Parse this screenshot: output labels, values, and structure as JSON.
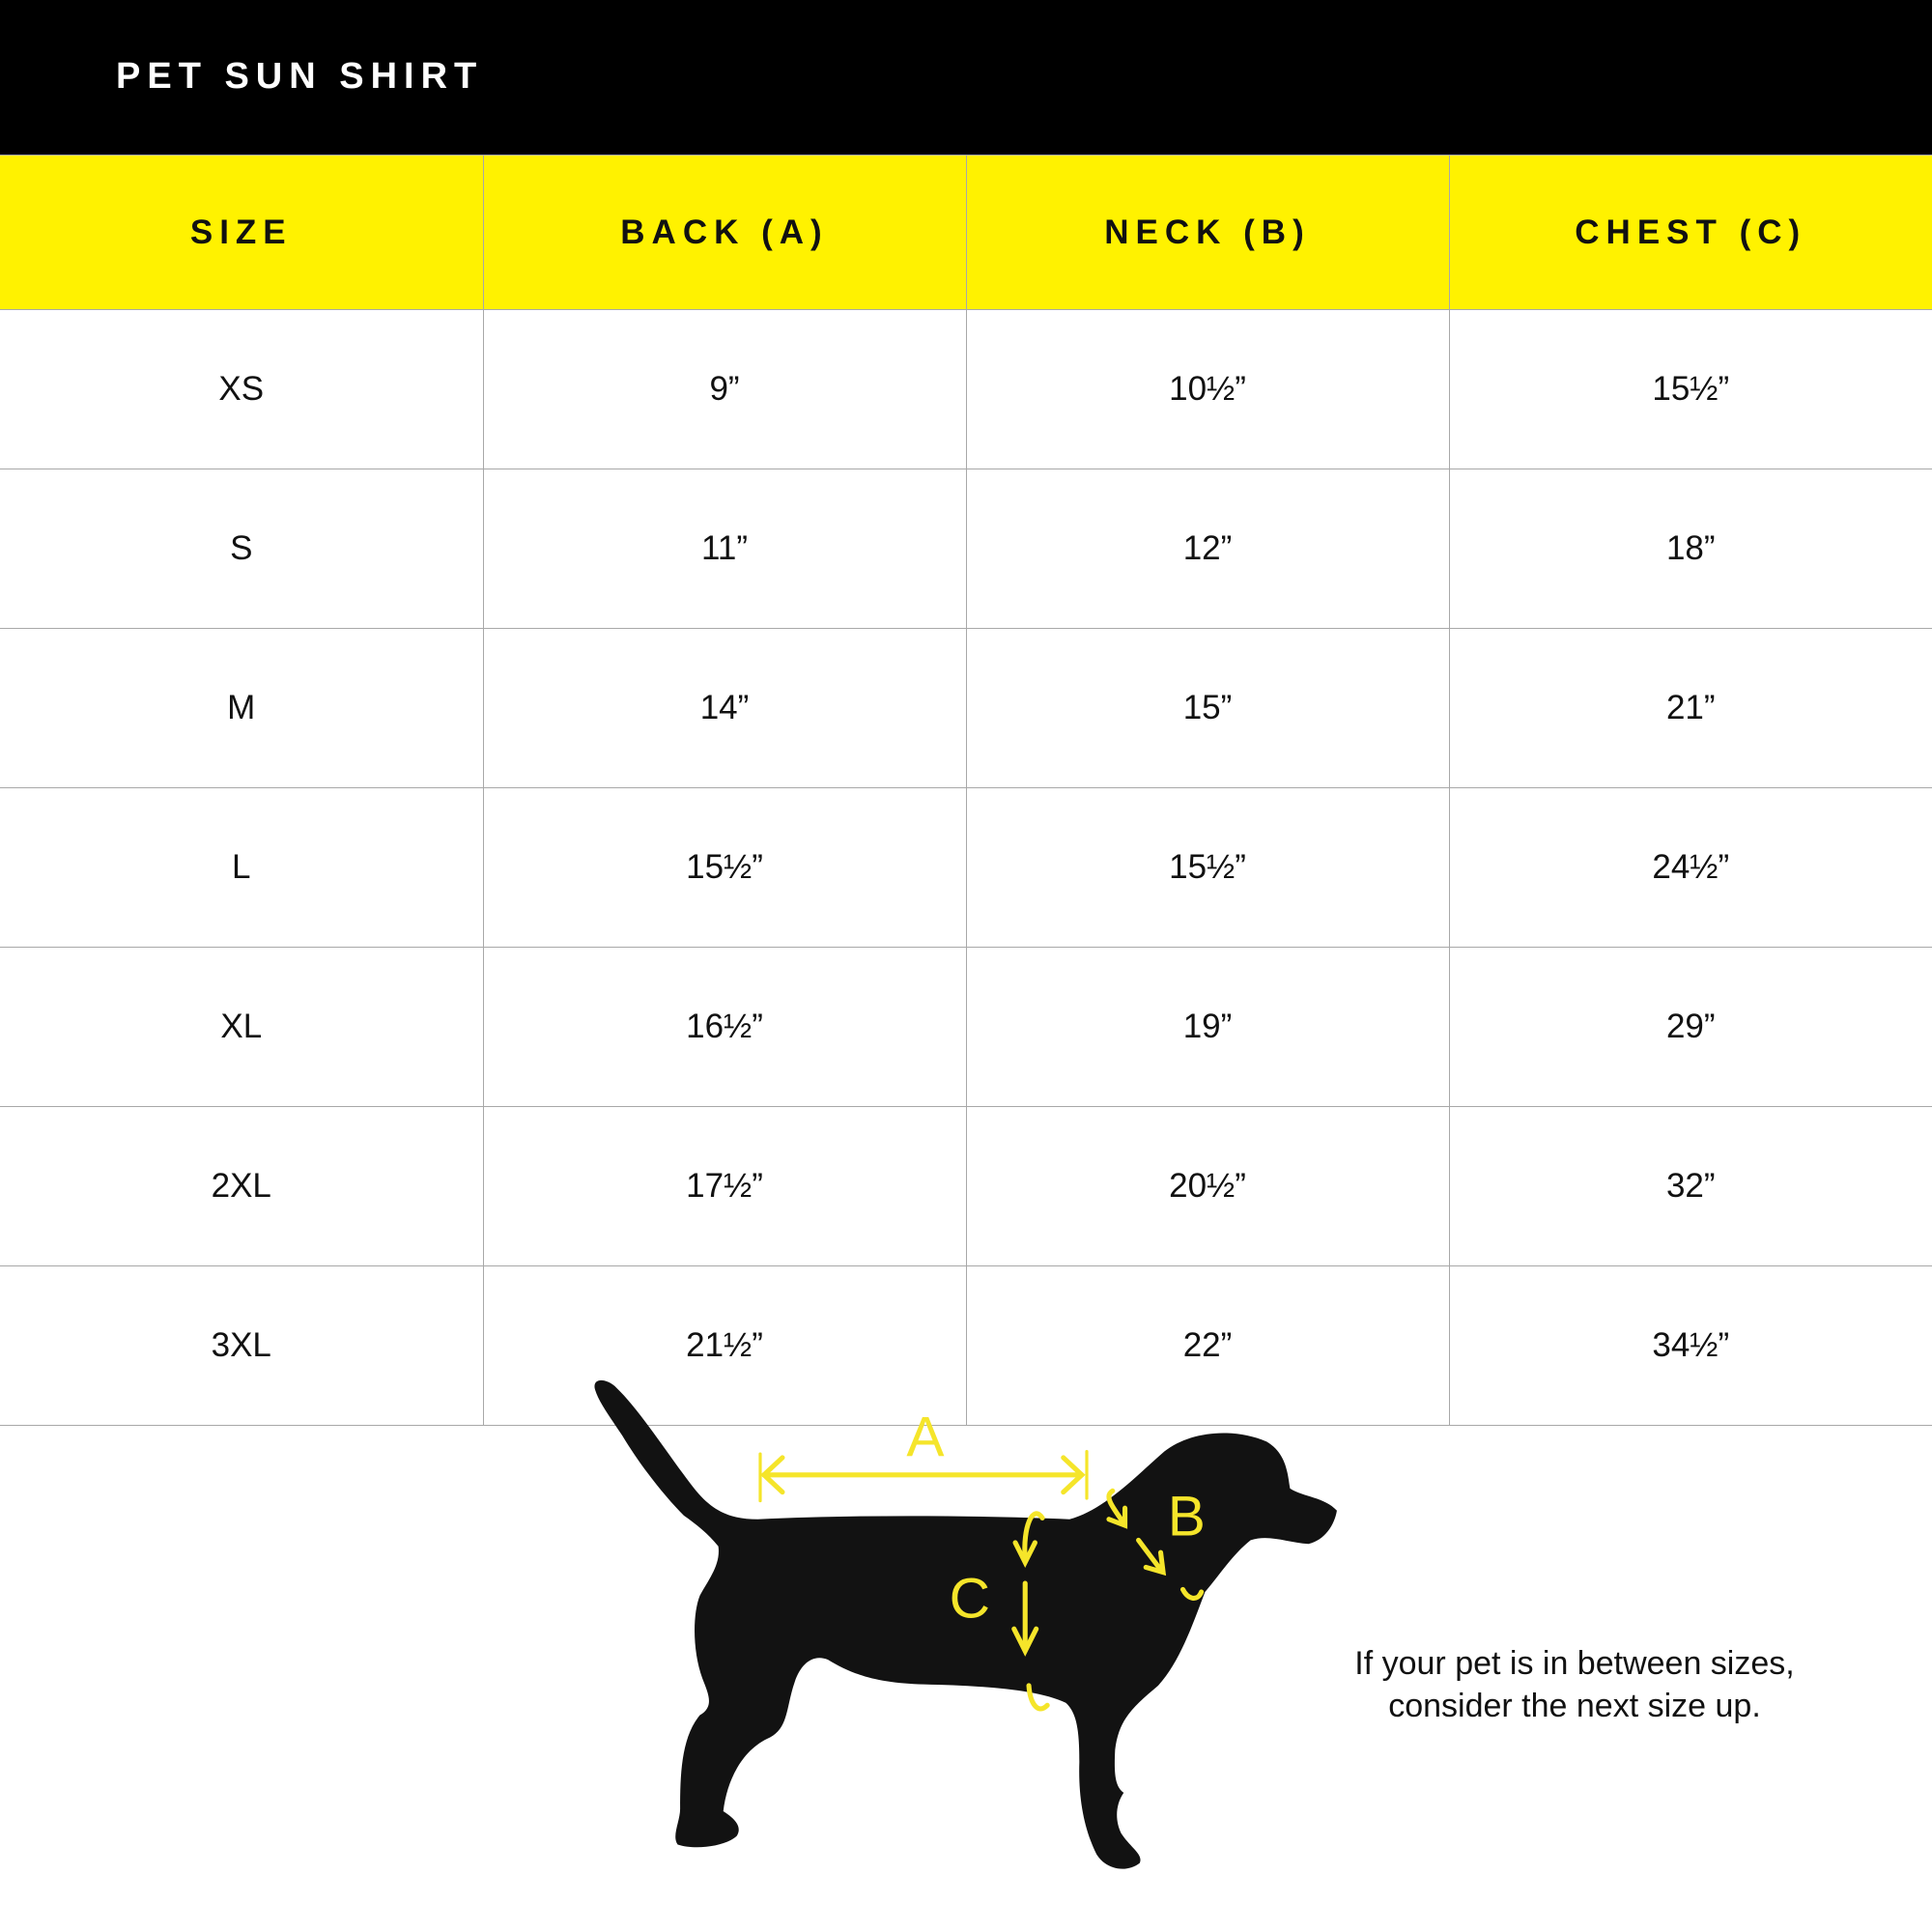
{
  "header": {
    "title": "PET SUN SHIRT"
  },
  "table": {
    "columns": [
      "SIZE",
      "BACK (A)",
      "NECK (B)",
      "CHEST (C)"
    ],
    "rows": [
      [
        "XS",
        "9”",
        "10½”",
        "15½”"
      ],
      [
        "S",
        "11”",
        "12”",
        "18”"
      ],
      [
        "M",
        "14”",
        "15”",
        "21”"
      ],
      [
        "L",
        "15½”",
        "15½”",
        "24½”"
      ],
      [
        "XL",
        "16½”",
        "19”",
        "29”"
      ],
      [
        "2XL",
        "17½”",
        "20½”",
        "32”"
      ],
      [
        "3XL",
        "21½”",
        "22”",
        "34½”"
      ]
    ]
  },
  "diagram": {
    "label_a": "A",
    "label_b": "B",
    "label_c": "C"
  },
  "note": {
    "line1": "If your pet is in between sizes,",
    "line2": "consider the next size up."
  },
  "colors": {
    "header_bg": "#000000",
    "accent_yellow": "#FFF200",
    "silhouette": "#121212"
  }
}
